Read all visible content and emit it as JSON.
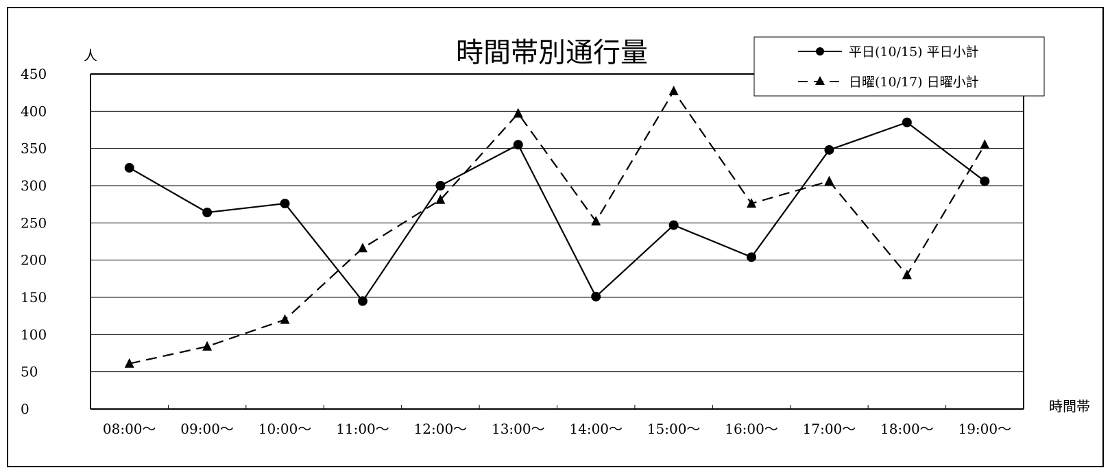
{
  "chart_data": {
    "type": "line",
    "title": "時間帯別通行量",
    "ylabel": "人",
    "xlabel": "時間帯",
    "ylim": [
      0,
      450
    ],
    "yticks": [
      0,
      50,
      100,
      150,
      200,
      250,
      300,
      350,
      400,
      450
    ],
    "grid": true,
    "legend_position": "top-right",
    "categories": [
      "08:00～",
      "09:00～",
      "10:00～",
      "11:00～",
      "12:00～",
      "13:00～",
      "14:00～",
      "15:00～",
      "16:00～",
      "17:00～",
      "18:00～",
      "19:00～"
    ],
    "series": [
      {
        "name": "平日(10/15) 平日小計",
        "line_style": "solid",
        "marker": "circle",
        "color": "#000000",
        "values": [
          324,
          264,
          276,
          145,
          300,
          355,
          151,
          247,
          204,
          348,
          385,
          306
        ]
      },
      {
        "name": "日曜(10/17) 日曜小計",
        "line_style": "dashed",
        "marker": "triangle",
        "color": "#000000",
        "values": [
          61,
          84,
          120,
          216,
          281,
          397,
          252,
          427,
          276,
          306,
          180,
          355
        ]
      }
    ]
  }
}
